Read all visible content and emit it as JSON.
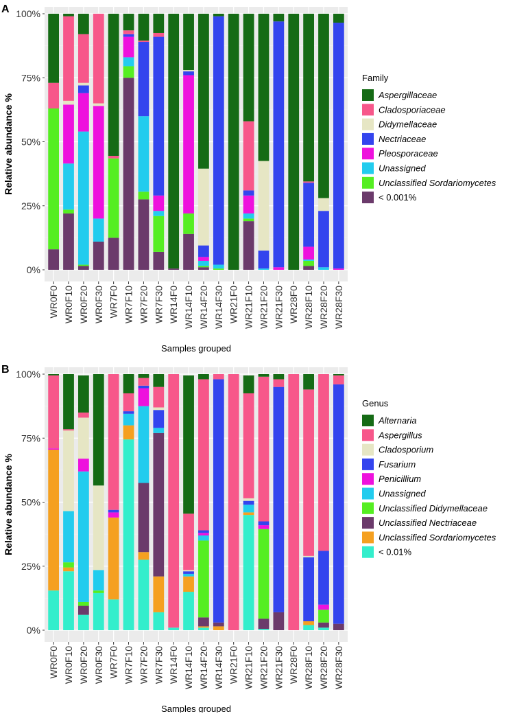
{
  "chart_data": [
    {
      "panel_label": "A",
      "type": "bar",
      "stacked": true,
      "xlabel": "Samples grouped",
      "ylabel": "Relative abundance %",
      "y_ticks": [
        "0%",
        "25%",
        "50%",
        "75%",
        "100%"
      ],
      "ylim": [
        0,
        100
      ],
      "legend_title": "Family",
      "legend_position": "right",
      "categories": [
        "WR0F0",
        "WR0F10",
        "WR0F20",
        "WR0F30",
        "WR7F0",
        "WR7F10",
        "WR7F20",
        "WR7F30",
        "WR14F0",
        "WR14F10",
        "WR14F20",
        "WR14F30",
        "WR21F0",
        "WR21F10",
        "WR21F20",
        "WR21F30",
        "WR28F0",
        "WR28F10",
        "WR28F20",
        "WR28F30"
      ],
      "series": [
        {
          "name": "< 0.001%",
          "color": "#6b3a6b",
          "values": [
            8,
            22,
            1.5,
            11,
            12.5,
            75,
            27.5,
            7,
            0.5,
            14,
            1,
            0,
            0,
            19,
            0,
            0,
            0,
            1.5,
            0,
            0
          ]
        },
        {
          "name": "Unclassified Sordariomycetes",
          "color": "#55ee22",
          "values": [
            55,
            1.5,
            0.5,
            0,
            31,
            4.5,
            3,
            14,
            0,
            8,
            0.5,
            0.5,
            0,
            1,
            0,
            0,
            0,
            2,
            0,
            0
          ]
        },
        {
          "name": "Unassigned",
          "color": "#22ccee",
          "values": [
            0,
            18,
            52,
            9,
            0,
            3.5,
            29.5,
            2,
            0,
            0,
            2,
            1.5,
            0,
            2,
            0.5,
            0,
            0,
            0.5,
            1,
            0
          ]
        },
        {
          "name": "Pleosporaceae",
          "color": "#ee11dd",
          "values": [
            0,
            23,
            15,
            44,
            0,
            8,
            0,
            6,
            0,
            54,
            1.5,
            0,
            0,
            7,
            0,
            1,
            0,
            5,
            0,
            0.5
          ]
        },
        {
          "name": "Nectriaceae",
          "color": "#3344ee",
          "values": [
            0,
            0,
            3,
            0,
            0,
            1,
            29,
            62,
            0,
            1.5,
            4.5,
            97,
            0,
            2,
            7,
            96,
            0,
            25,
            22,
            96
          ]
        },
        {
          "name": "Didymellaceae",
          "color": "#e6e6c4",
          "values": [
            0,
            1.5,
            1,
            1,
            0,
            0,
            0,
            0,
            0,
            0.5,
            30,
            0,
            0,
            0,
            35,
            0,
            0,
            0,
            5,
            0
          ]
        },
        {
          "name": "Cladosporiaceae",
          "color": "#f7578a",
          "values": [
            10,
            33,
            19,
            35,
            1,
            1.5,
            0.5,
            1.5,
            0,
            0,
            0,
            0,
            0,
            27,
            0,
            0,
            0,
            0.5,
            0,
            0
          ]
        },
        {
          "name": "Aspergillaceae",
          "color": "#156b15",
          "values": [
            27,
            1,
            8,
            0,
            55.5,
            6.5,
            10.5,
            7.5,
            99.5,
            22,
            60.5,
            1,
            100,
            42,
            57.5,
            3,
            100,
            65.5,
            72,
            3.5
          ]
        }
      ]
    },
    {
      "panel_label": "B",
      "type": "bar",
      "stacked": true,
      "xlabel": "Samples grouped",
      "ylabel": "Relative abundance %",
      "y_ticks": [
        "0%",
        "25%",
        "50%",
        "75%",
        "100%"
      ],
      "ylim": [
        0,
        100
      ],
      "legend_title": "Genus",
      "legend_position": "right",
      "categories": [
        "WR0F0",
        "WR0F10",
        "WR0F20",
        "WR0F30",
        "WR7F0",
        "WR7F10",
        "WR7F20",
        "WR7F30",
        "WR14F0",
        "WR14F10",
        "WR14F20",
        "WR14F30",
        "WR21F0",
        "WR21F10",
        "WR21F20",
        "WR21F30",
        "WR28F0",
        "WR28F10",
        "WR28F20",
        "WR28F30"
      ],
      "series": [
        {
          "name": "< 0.01%",
          "color": "#33eecc",
          "values": [
            15.5,
            23,
            6,
            14.5,
            12,
            74.5,
            27.5,
            7,
            1,
            15,
            1,
            0,
            0,
            45,
            0.5,
            0,
            0,
            2,
            1,
            0
          ]
        },
        {
          "name": "Unclassified Sordariomycetes",
          "color": "#f5a020",
          "values": [
            55,
            1.5,
            0,
            0,
            32,
            5.5,
            3,
            14,
            0,
            6,
            0.5,
            1.5,
            0,
            1,
            0,
            0,
            0,
            1.5,
            0,
            0
          ]
        },
        {
          "name": "Unclassified Nectriaceae",
          "color": "#6b3a6b",
          "values": [
            0,
            0,
            3.5,
            0,
            0,
            0,
            27,
            56,
            0,
            0,
            3.5,
            1.5,
            0,
            0,
            4,
            7,
            0,
            0,
            2,
            2.5
          ]
        },
        {
          "name": "Unclassified Didymellaceae",
          "color": "#55ee22",
          "values": [
            0,
            2,
            1.5,
            1,
            0,
            0,
            0,
            0,
            0,
            0,
            30,
            0,
            0,
            0,
            35,
            0,
            0,
            0,
            5,
            0
          ]
        },
        {
          "name": "Unassigned",
          "color": "#22ccee",
          "values": [
            0,
            20,
            51,
            8,
            0,
            4.5,
            30,
            2,
            0,
            1,
            2,
            0,
            0,
            3,
            0,
            0,
            0,
            0,
            0,
            0
          ]
        },
        {
          "name": "Penicillium",
          "color": "#ee11dd",
          "values": [
            0.5,
            0,
            5,
            0,
            2,
            0,
            7,
            0,
            0,
            0,
            1,
            0,
            0,
            0,
            1.5,
            0,
            0,
            0,
            2,
            0
          ]
        },
        {
          "name": "Fusarium",
          "color": "#3344ee",
          "values": [
            0,
            0,
            0,
            0,
            1,
            1,
            1,
            7,
            0,
            1,
            1,
            95,
            0,
            1.5,
            1.5,
            88,
            0,
            25,
            21,
            93.5
          ]
        },
        {
          "name": "Cladosporium",
          "color": "#e6e6c4",
          "values": [
            0,
            31.5,
            16,
            33,
            0,
            0,
            0,
            1,
            0,
            0.5,
            0,
            0,
            0,
            1,
            0,
            0,
            0,
            0.5,
            0,
            0
          ]
        },
        {
          "name": "Aspergillus",
          "color": "#f7578a",
          "values": [
            28.5,
            0.5,
            2,
            0,
            53,
            7,
            3,
            8,
            99,
            22,
            59,
            2,
            100,
            41,
            56.5,
            3,
            100,
            65,
            69,
            3.5
          ]
        },
        {
          "name": "Alternaria",
          "color": "#156b15",
          "values": [
            0.5,
            21.5,
            14.5,
            43.5,
            0,
            7.5,
            1.5,
            5,
            0,
            54,
            2,
            0,
            0,
            7,
            1,
            2,
            0,
            6,
            0,
            0.5
          ]
        }
      ]
    }
  ]
}
